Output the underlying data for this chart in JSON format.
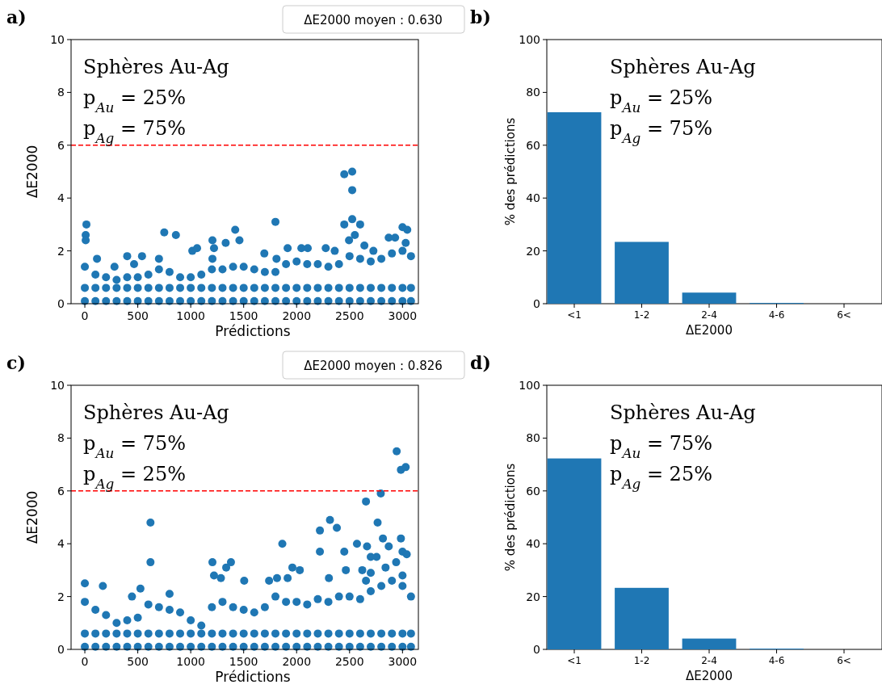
{
  "chart_data": [
    {
      "type": "scatter",
      "xlabel": "Prédictions",
      "ylabel": "ΔE2000",
      "xlim": [
        -130,
        3150
      ],
      "ylim": [
        0,
        10
      ],
      "xticks": [
        0,
        500,
        1000,
        1500,
        2000,
        2500,
        3000
      ],
      "yticks": [
        0,
        2,
        4,
        6,
        8,
        10
      ],
      "marker": "circle",
      "grid": false,
      "annotations": [
        "a)",
        "ΔE2000 moyen : 0.630",
        "Sphères Au-Ag",
        "p$_{Au}$ = 25%",
        "p$_{Ag}$ = 75%"
      ],
      "ref_lines": [
        {
          "axis": "y",
          "value": 6,
          "color": "#ff0000",
          "line_style": "dashed"
        }
      ],
      "series": [
        {
          "color": "#1f77b4",
          "x": [
            0,
            100,
            200,
            300,
            400,
            500,
            600,
            700,
            800,
            900,
            1000,
            1100,
            1200,
            1300,
            1400,
            1500,
            1600,
            1700,
            1800,
            1900,
            2000,
            2100,
            2200,
            2300,
            2400,
            2500,
            2600,
            2700,
            2800,
            2900,
            3000,
            3080,
            0,
            100,
            200,
            300,
            400,
            500,
            600,
            700,
            800,
            900,
            1000,
            1100,
            1200,
            1300,
            1400,
            1500,
            1600,
            1700,
            1800,
            1900,
            2000,
            2100,
            2200,
            2300,
            2400,
            2500,
            2600,
            2700,
            2800,
            2900,
            3000,
            3080,
            0,
            100,
            200,
            300,
            400,
            500,
            600,
            700,
            800,
            900,
            1000,
            1100,
            1200,
            1300,
            1400,
            1500,
            1600,
            1700,
            1800,
            1900,
            2000,
            2100,
            2200,
            2300,
            2400,
            2500,
            2600,
            2700,
            2800,
            2900,
            3000,
            3080,
            15,
            8,
            8,
            115,
            280,
            400,
            465,
            540,
            750,
            860,
            700,
            1015,
            1060,
            1205,
            1220,
            1205,
            1330,
            1420,
            1460,
            1695,
            1800,
            1810,
            1915,
            2045,
            2105,
            2275,
            2360,
            2450,
            2525,
            2525,
            2525,
            2450,
            2600,
            2550,
            2495,
            2640,
            3000,
            3045,
            2870,
            2930,
            3030,
            2725
          ],
          "values": [
            0.1,
            0.1,
            0.1,
            0.1,
            0.1,
            0.1,
            0.1,
            0.1,
            0.1,
            0.1,
            0.1,
            0.1,
            0.1,
            0.1,
            0.1,
            0.1,
            0.1,
            0.1,
            0.1,
            0.1,
            0.1,
            0.1,
            0.1,
            0.1,
            0.1,
            0.1,
            0.1,
            0.1,
            0.1,
            0.1,
            0.1,
            0.1,
            0.6,
            0.6,
            0.6,
            0.6,
            0.6,
            0.6,
            0.6,
            0.6,
            0.6,
            0.6,
            0.6,
            0.6,
            0.6,
            0.6,
            0.6,
            0.6,
            0.6,
            0.6,
            0.6,
            0.6,
            0.6,
            0.6,
            0.6,
            0.6,
            0.6,
            0.6,
            0.6,
            0.6,
            0.6,
            0.6,
            0.6,
            0.6,
            1.4,
            1.1,
            1.0,
            0.9,
            1.0,
            1.0,
            1.1,
            1.3,
            1.2,
            1.0,
            1.0,
            1.1,
            1.3,
            1.3,
            1.4,
            1.4,
            1.3,
            1.2,
            1.2,
            1.5,
            1.6,
            1.5,
            1.5,
            1.4,
            1.5,
            1.8,
            1.7,
            1.6,
            1.7,
            1.9,
            2.0,
            1.8,
            3.0,
            2.6,
            2.4,
            1.7,
            1.4,
            1.8,
            1.5,
            1.8,
            2.7,
            2.6,
            1.7,
            2.0,
            2.1,
            2.4,
            2.1,
            1.7,
            2.3,
            2.8,
            2.4,
            1.9,
            3.1,
            1.7,
            2.1,
            2.1,
            2.1,
            2.1,
            2.0,
            4.9,
            5.0,
            4.3,
            3.2,
            3.0,
            3.0,
            2.6,
            2.4,
            2.2,
            2.9,
            2.8,
            2.5,
            2.5,
            2.3,
            2.0
          ]
        }
      ]
    },
    {
      "type": "bar",
      "xlabel": "ΔE2000",
      "ylabel": "% des prédictions",
      "categories": [
        "<1",
        "1-2",
        "2-4",
        "4-6",
        "6<"
      ],
      "values": [
        72.5,
        23.4,
        4.2,
        0.3,
        0
      ],
      "color": "#1f77b4",
      "ylim": [
        0,
        100
      ],
      "yticks": [
        0,
        20,
        40,
        60,
        80,
        100
      ],
      "grid": false,
      "annotations": [
        "b)",
        "Sphères Au-Ag",
        "p$_{Au}$ = 25%",
        "p$_{Ag}$ = 75%"
      ]
    },
    {
      "type": "scatter",
      "xlabel": "Prédictions",
      "ylabel": "ΔE2000",
      "xlim": [
        -130,
        3150
      ],
      "ylim": [
        0,
        10
      ],
      "xticks": [
        0,
        500,
        1000,
        1500,
        2000,
        2500,
        3000
      ],
      "yticks": [
        0,
        2,
        4,
        6,
        8,
        10
      ],
      "marker": "circle",
      "grid": false,
      "annotations": [
        "c)",
        "ΔE2000 moyen : 0.826",
        "Sphères Au-Ag",
        "p$_{Au}$ = 75%",
        "p$_{Ag}$ = 25%"
      ],
      "ref_lines": [
        {
          "axis": "y",
          "value": 6,
          "color": "#ff0000",
          "line_style": "dashed"
        }
      ],
      "series": [
        {
          "color": "#1f77b4",
          "x": [
            0,
            100,
            200,
            300,
            400,
            500,
            600,
            700,
            800,
            900,
            1000,
            1100,
            1200,
            1300,
            1400,
            1500,
            1600,
            1700,
            1800,
            1900,
            2000,
            2100,
            2200,
            2300,
            2400,
            2500,
            2600,
            2700,
            2800,
            2900,
            3000,
            3080,
            0,
            100,
            200,
            300,
            400,
            500,
            600,
            700,
            800,
            900,
            1000,
            1100,
            1200,
            1300,
            1400,
            1500,
            1600,
            1700,
            1800,
            1900,
            2000,
            2100,
            2200,
            2300,
            2400,
            2500,
            2600,
            2700,
            2800,
            2900,
            3000,
            3080,
            0,
            100,
            200,
            300,
            400,
            500,
            600,
            700,
            800,
            900,
            1000,
            1100,
            1200,
            1300,
            1400,
            1500,
            1600,
            1700,
            1800,
            1900,
            2000,
            2100,
            2200,
            2300,
            2400,
            2500,
            2600,
            2700,
            2800,
            2900,
            3000,
            3080,
            2945,
            2985,
            3030,
            2795,
            2655,
            2765,
            2315,
            2380,
            2220,
            2220,
            2450,
            2570,
            2665,
            2700,
            2755,
            2815,
            2870,
            2985,
            3000,
            3040,
            2940,
            1865,
            620,
            620,
            1205,
            1220,
            1380,
            1335,
            1285,
            1505,
            1960,
            2030,
            1815,
            1740,
            2465,
            2620,
            2700,
            2655,
            2840,
            3000,
            2305,
            170,
            0,
            525,
            445,
            800,
            1915
          ],
          "values": [
            0.1,
            0.1,
            0.1,
            0.1,
            0.1,
            0.1,
            0.1,
            0.1,
            0.1,
            0.1,
            0.1,
            0.1,
            0.1,
            0.1,
            0.1,
            0.1,
            0.1,
            0.1,
            0.1,
            0.1,
            0.1,
            0.1,
            0.1,
            0.1,
            0.1,
            0.1,
            0.1,
            0.1,
            0.1,
            0.1,
            0.1,
            0.1,
            0.6,
            0.6,
            0.6,
            0.6,
            0.6,
            0.6,
            0.6,
            0.6,
            0.6,
            0.6,
            0.6,
            0.6,
            0.6,
            0.6,
            0.6,
            0.6,
            0.6,
            0.6,
            0.6,
            0.6,
            0.6,
            0.6,
            0.6,
            0.6,
            0.6,
            0.6,
            0.6,
            0.6,
            0.6,
            0.6,
            0.6,
            0.6,
            1.8,
            1.5,
            1.3,
            1.0,
            1.1,
            1.2,
            1.7,
            1.6,
            1.5,
            1.4,
            1.1,
            0.9,
            1.6,
            1.8,
            1.6,
            1.5,
            1.4,
            1.6,
            2.0,
            1.8,
            1.8,
            1.7,
            1.9,
            1.8,
            2.0,
            2.0,
            1.9,
            2.2,
            2.4,
            2.6,
            2.4,
            2.0,
            7.5,
            6.8,
            6.9,
            5.9,
            5.6,
            4.8,
            4.9,
            4.6,
            4.5,
            3.7,
            3.7,
            4.0,
            3.9,
            3.5,
            3.5,
            4.2,
            3.9,
            4.2,
            3.7,
            3.6,
            3.3,
            4.0,
            4.8,
            3.3,
            3.3,
            2.8,
            3.3,
            3.1,
            2.7,
            2.6,
            3.1,
            3.0,
            2.7,
            2.6,
            3.0,
            3.0,
            2.9,
            2.6,
            3.1,
            2.8,
            2.7,
            2.4,
            2.5,
            2.3,
            2.0,
            2.1,
            2.7
          ]
        }
      ]
    },
    {
      "type": "bar",
      "xlabel": "ΔE2000",
      "ylabel": "% des prédictions",
      "categories": [
        "<1",
        "1-2",
        "2-4",
        "4-6",
        "6<"
      ],
      "values": [
        72.3,
        23.3,
        4.1,
        0.3,
        0
      ],
      "color": "#1f77b4",
      "ylim": [
        0,
        100
      ],
      "yticks": [
        0,
        20,
        40,
        60,
        80,
        100
      ],
      "grid": false,
      "annotations": [
        "d)",
        "Sphères Au-Ag",
        "p$_{Au}$ = 75%",
        "p$_{Ag}$ = 25%"
      ]
    }
  ]
}
